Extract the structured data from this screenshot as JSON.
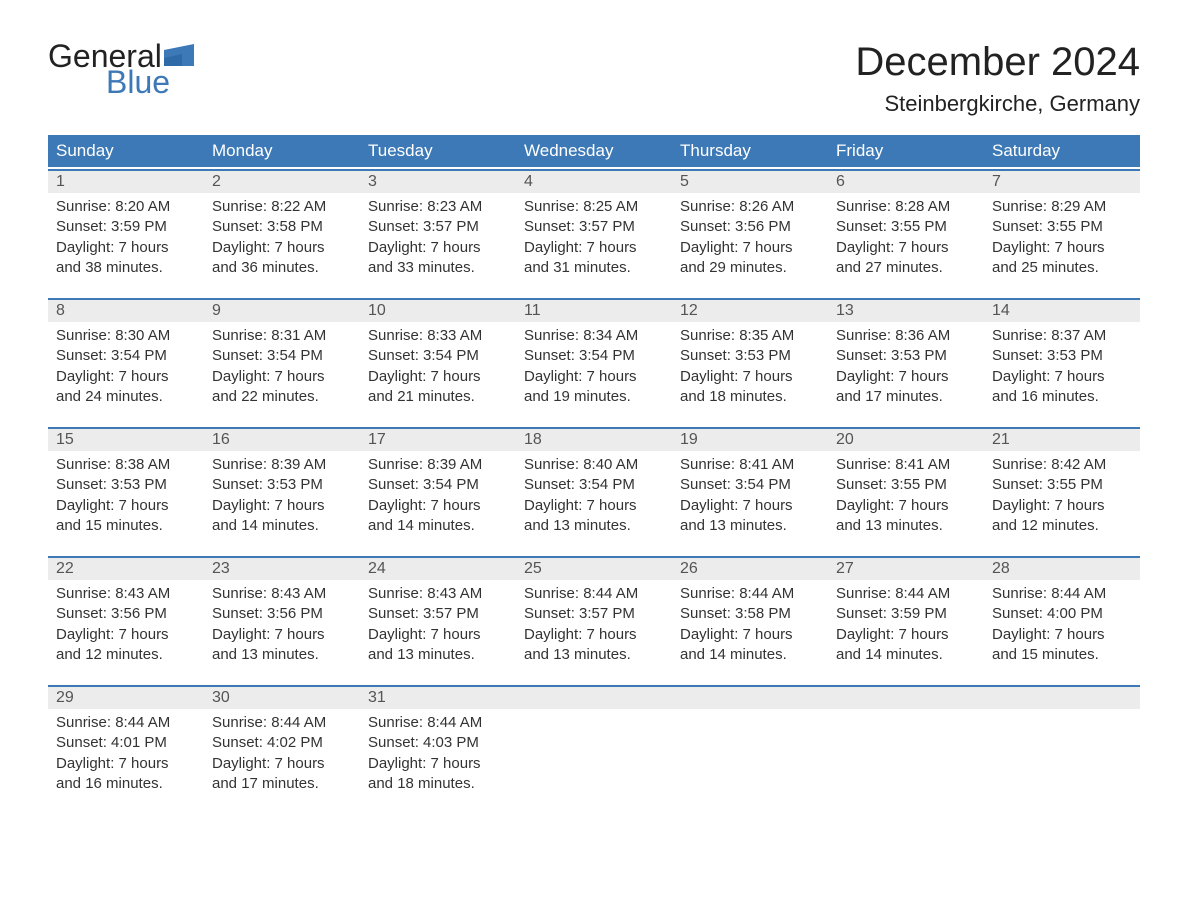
{
  "brand": {
    "text1": "General",
    "text2": "Blue",
    "text_color": "#222222",
    "accent_color": "#3c79b6"
  },
  "title": "December 2024",
  "location": "Steinbergkirche, Germany",
  "colors": {
    "header_bg": "#3c79b6",
    "header_text": "#ffffff",
    "daynum_bg": "#ececec",
    "daynum_text": "#555555",
    "body_text": "#333333",
    "row_border": "#3c79b6",
    "background": "#ffffff"
  },
  "typography": {
    "title_fontsize": 40,
    "location_fontsize": 22,
    "weekday_fontsize": 17,
    "daynum_fontsize": 16,
    "body_fontsize": 15,
    "font_family": "Arial"
  },
  "weekdays": [
    "Sunday",
    "Monday",
    "Tuesday",
    "Wednesday",
    "Thursday",
    "Friday",
    "Saturday"
  ],
  "weeks": [
    [
      {
        "n": "1",
        "sunrise": "Sunrise: 8:20 AM",
        "sunset": "Sunset: 3:59 PM",
        "d1": "Daylight: 7 hours",
        "d2": "and 38 minutes."
      },
      {
        "n": "2",
        "sunrise": "Sunrise: 8:22 AM",
        "sunset": "Sunset: 3:58 PM",
        "d1": "Daylight: 7 hours",
        "d2": "and 36 minutes."
      },
      {
        "n": "3",
        "sunrise": "Sunrise: 8:23 AM",
        "sunset": "Sunset: 3:57 PM",
        "d1": "Daylight: 7 hours",
        "d2": "and 33 minutes."
      },
      {
        "n": "4",
        "sunrise": "Sunrise: 8:25 AM",
        "sunset": "Sunset: 3:57 PM",
        "d1": "Daylight: 7 hours",
        "d2": "and 31 minutes."
      },
      {
        "n": "5",
        "sunrise": "Sunrise: 8:26 AM",
        "sunset": "Sunset: 3:56 PM",
        "d1": "Daylight: 7 hours",
        "d2": "and 29 minutes."
      },
      {
        "n": "6",
        "sunrise": "Sunrise: 8:28 AM",
        "sunset": "Sunset: 3:55 PM",
        "d1": "Daylight: 7 hours",
        "d2": "and 27 minutes."
      },
      {
        "n": "7",
        "sunrise": "Sunrise: 8:29 AM",
        "sunset": "Sunset: 3:55 PM",
        "d1": "Daylight: 7 hours",
        "d2": "and 25 minutes."
      }
    ],
    [
      {
        "n": "8",
        "sunrise": "Sunrise: 8:30 AM",
        "sunset": "Sunset: 3:54 PM",
        "d1": "Daylight: 7 hours",
        "d2": "and 24 minutes."
      },
      {
        "n": "9",
        "sunrise": "Sunrise: 8:31 AM",
        "sunset": "Sunset: 3:54 PM",
        "d1": "Daylight: 7 hours",
        "d2": "and 22 minutes."
      },
      {
        "n": "10",
        "sunrise": "Sunrise: 8:33 AM",
        "sunset": "Sunset: 3:54 PM",
        "d1": "Daylight: 7 hours",
        "d2": "and 21 minutes."
      },
      {
        "n": "11",
        "sunrise": "Sunrise: 8:34 AM",
        "sunset": "Sunset: 3:54 PM",
        "d1": "Daylight: 7 hours",
        "d2": "and 19 minutes."
      },
      {
        "n": "12",
        "sunrise": "Sunrise: 8:35 AM",
        "sunset": "Sunset: 3:53 PM",
        "d1": "Daylight: 7 hours",
        "d2": "and 18 minutes."
      },
      {
        "n": "13",
        "sunrise": "Sunrise: 8:36 AM",
        "sunset": "Sunset: 3:53 PM",
        "d1": "Daylight: 7 hours",
        "d2": "and 17 minutes."
      },
      {
        "n": "14",
        "sunrise": "Sunrise: 8:37 AM",
        "sunset": "Sunset: 3:53 PM",
        "d1": "Daylight: 7 hours",
        "d2": "and 16 minutes."
      }
    ],
    [
      {
        "n": "15",
        "sunrise": "Sunrise: 8:38 AM",
        "sunset": "Sunset: 3:53 PM",
        "d1": "Daylight: 7 hours",
        "d2": "and 15 minutes."
      },
      {
        "n": "16",
        "sunrise": "Sunrise: 8:39 AM",
        "sunset": "Sunset: 3:53 PM",
        "d1": "Daylight: 7 hours",
        "d2": "and 14 minutes."
      },
      {
        "n": "17",
        "sunrise": "Sunrise: 8:39 AM",
        "sunset": "Sunset: 3:54 PM",
        "d1": "Daylight: 7 hours",
        "d2": "and 14 minutes."
      },
      {
        "n": "18",
        "sunrise": "Sunrise: 8:40 AM",
        "sunset": "Sunset: 3:54 PM",
        "d1": "Daylight: 7 hours",
        "d2": "and 13 minutes."
      },
      {
        "n": "19",
        "sunrise": "Sunrise: 8:41 AM",
        "sunset": "Sunset: 3:54 PM",
        "d1": "Daylight: 7 hours",
        "d2": "and 13 minutes."
      },
      {
        "n": "20",
        "sunrise": "Sunrise: 8:41 AM",
        "sunset": "Sunset: 3:55 PM",
        "d1": "Daylight: 7 hours",
        "d2": "and 13 minutes."
      },
      {
        "n": "21",
        "sunrise": "Sunrise: 8:42 AM",
        "sunset": "Sunset: 3:55 PM",
        "d1": "Daylight: 7 hours",
        "d2": "and 12 minutes."
      }
    ],
    [
      {
        "n": "22",
        "sunrise": "Sunrise: 8:43 AM",
        "sunset": "Sunset: 3:56 PM",
        "d1": "Daylight: 7 hours",
        "d2": "and 12 minutes."
      },
      {
        "n": "23",
        "sunrise": "Sunrise: 8:43 AM",
        "sunset": "Sunset: 3:56 PM",
        "d1": "Daylight: 7 hours",
        "d2": "and 13 minutes."
      },
      {
        "n": "24",
        "sunrise": "Sunrise: 8:43 AM",
        "sunset": "Sunset: 3:57 PM",
        "d1": "Daylight: 7 hours",
        "d2": "and 13 minutes."
      },
      {
        "n": "25",
        "sunrise": "Sunrise: 8:44 AM",
        "sunset": "Sunset: 3:57 PM",
        "d1": "Daylight: 7 hours",
        "d2": "and 13 minutes."
      },
      {
        "n": "26",
        "sunrise": "Sunrise: 8:44 AM",
        "sunset": "Sunset: 3:58 PM",
        "d1": "Daylight: 7 hours",
        "d2": "and 14 minutes."
      },
      {
        "n": "27",
        "sunrise": "Sunrise: 8:44 AM",
        "sunset": "Sunset: 3:59 PM",
        "d1": "Daylight: 7 hours",
        "d2": "and 14 minutes."
      },
      {
        "n": "28",
        "sunrise": "Sunrise: 8:44 AM",
        "sunset": "Sunset: 4:00 PM",
        "d1": "Daylight: 7 hours",
        "d2": "and 15 minutes."
      }
    ],
    [
      {
        "n": "29",
        "sunrise": "Sunrise: 8:44 AM",
        "sunset": "Sunset: 4:01 PM",
        "d1": "Daylight: 7 hours",
        "d2": "and 16 minutes."
      },
      {
        "n": "30",
        "sunrise": "Sunrise: 8:44 AM",
        "sunset": "Sunset: 4:02 PM",
        "d1": "Daylight: 7 hours",
        "d2": "and 17 minutes."
      },
      {
        "n": "31",
        "sunrise": "Sunrise: 8:44 AM",
        "sunset": "Sunset: 4:03 PM",
        "d1": "Daylight: 7 hours",
        "d2": "and 18 minutes."
      },
      {
        "empty": true
      },
      {
        "empty": true
      },
      {
        "empty": true
      },
      {
        "empty": true
      }
    ]
  ]
}
